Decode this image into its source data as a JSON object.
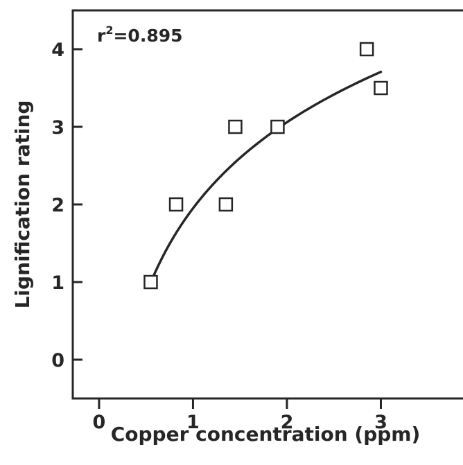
{
  "chart_data": {
    "type": "scatter",
    "title": "",
    "xlabel": "Copper concentration (ppm)",
    "ylabel": "Lignification rating",
    "xlim": [
      -0.28,
      4.0
    ],
    "ylim": [
      -0.5,
      4.5
    ],
    "x_ticks": [
      0,
      1,
      2,
      3,
      4
    ],
    "x_tick_labels": [
      "0",
      "1",
      "2",
      "3",
      "4"
    ],
    "y_ticks": [
      0,
      1,
      2,
      3,
      4
    ],
    "y_tick_labels": [
      "0",
      "1",
      "2",
      "3",
      "4"
    ],
    "grid": false,
    "legend": "none",
    "annotation": {
      "base": "r",
      "superscript": "2",
      "rest": "=0.895"
    },
    "series": [
      {
        "marker": "open-square",
        "points": [
          {
            "x": 0.55,
            "y": 1.0
          },
          {
            "x": 0.82,
            "y": 2.0
          },
          {
            "x": 1.35,
            "y": 2.0
          },
          {
            "x": 1.45,
            "y": 3.0
          },
          {
            "x": 1.9,
            "y": 3.0
          },
          {
            "x": 2.85,
            "y": 4.0
          },
          {
            "x": 3.0,
            "y": 3.5
          }
        ]
      }
    ],
    "fit_curve": {
      "model": "logarithmic",
      "x_range": [
        0.55,
        3.0
      ],
      "a": 1.95,
      "b": 1.6
    },
    "colors": {
      "ink": "#262626",
      "background": "#ffffff"
    }
  }
}
